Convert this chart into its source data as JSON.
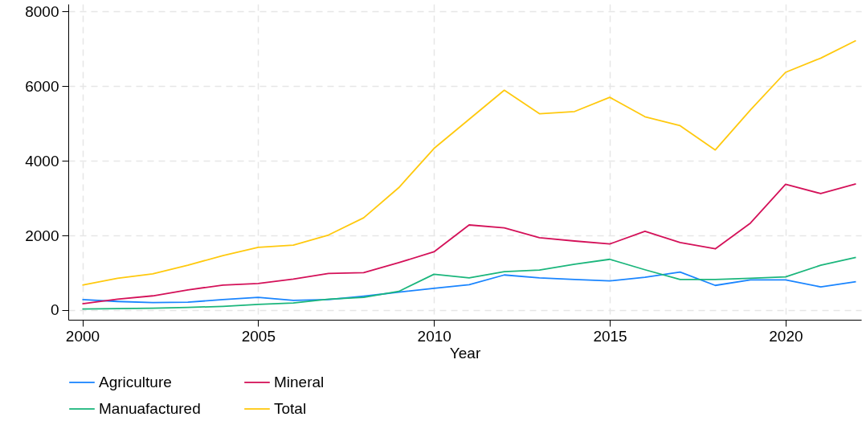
{
  "chart_data": {
    "type": "line",
    "xlabel": "Year",
    "x": [
      2000,
      2001,
      2002,
      2003,
      2004,
      2005,
      2006,
      2007,
      2008,
      2009,
      2010,
      2011,
      2012,
      2013,
      2014,
      2015,
      2016,
      2017,
      2018,
      2019,
      2020,
      2021,
      2022
    ],
    "xlim": [
      1999.6,
      2022.15
    ],
    "xticks": [
      2000,
      2005,
      2010,
      2015,
      2020
    ],
    "ylim": [
      -260,
      8200
    ],
    "yticks": [
      0,
      2000,
      4000,
      6000,
      8000
    ],
    "grid": true,
    "legend": "bottom",
    "line_style": "solid",
    "series": [
      {
        "name": "Agriculture",
        "color": "#1a85ff",
        "values": [
          280,
          230,
          200,
          210,
          280,
          340,
          260,
          280,
          370,
          480,
          580,
          680,
          940,
          860,
          820,
          780,
          880,
          1020,
          660,
          810,
          810,
          620,
          760
        ]
      },
      {
        "name": "Mineral",
        "color": "#d41159",
        "values": [
          170,
          290,
          380,
          540,
          670,
          710,
          830,
          980,
          1000,
          1270,
          1560,
          2280,
          2200,
          1940,
          1850,
          1770,
          2110,
          1810,
          1640,
          2330,
          3370,
          3120,
          3380
        ]
      },
      {
        "name": "Manuafactured",
        "color": "#1bb67c",
        "values": [
          30,
          40,
          50,
          70,
          100,
          150,
          190,
          290,
          340,
          500,
          960,
          860,
          1030,
          1070,
          1230,
          1360,
          1080,
          820,
          820,
          850,
          890,
          1200,
          1410
        ]
      },
      {
        "name": "Total",
        "color": "#ffc90e",
        "values": [
          670,
          850,
          970,
          1200,
          1460,
          1680,
          1740,
          2010,
          2470,
          3280,
          4330,
          5110,
          5890,
          5260,
          5320,
          5700,
          5180,
          4940,
          4290,
          5360,
          6370,
          6750,
          7220
        ]
      }
    ]
  }
}
